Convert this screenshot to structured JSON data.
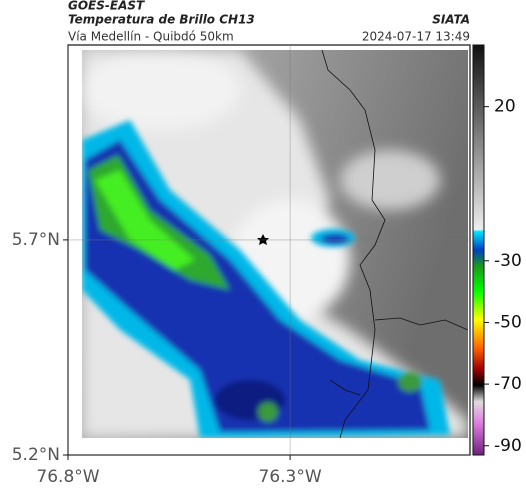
{
  "header": {
    "source": "GOES-EAST",
    "title": "Temperatura de Brillo CH13",
    "agency": "SIATA",
    "subtitle": "Vía Medellín - Quibdó 50km",
    "timestamp": "2024-07-17 13:49"
  },
  "map": {
    "lonlim": [
      -76.8,
      -75.895
    ],
    "latlim": [
      5.2,
      6.153
    ],
    "lon_ticks": [
      {
        "value": -76.8,
        "label": "76.8°W"
      },
      {
        "value": -76.3,
        "label": "76.3°W"
      }
    ],
    "lat_ticks": [
      {
        "value": 5.7,
        "label": "5.7°N"
      },
      {
        "value": 5.2,
        "label": "5.2°N"
      }
    ],
    "grid": true
  },
  "colorbar": {
    "vlim": [
      -93,
      40
    ],
    "ticks": [
      20,
      -30,
      -50,
      -70,
      -90
    ]
  }
}
